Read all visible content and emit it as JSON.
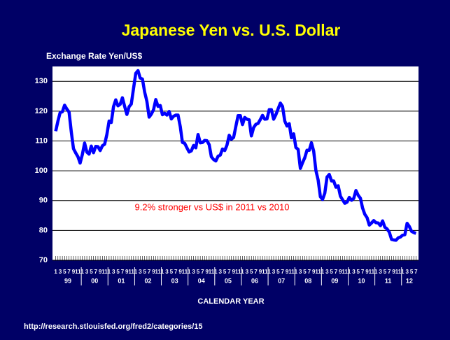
{
  "chart_data": {
    "type": "line",
    "title": "Japanese Yen vs. U.S. Dollar",
    "ylabel": "Exchange Rate Yen/US$",
    "xlabel": "CALENDAR YEAR",
    "annotation": "9.2% stronger vs US$ in 2011 vs 2010",
    "source": "http://research.stlouisfed.org/fred2/categories/15",
    "years": [
      "99",
      "00",
      "01",
      "02",
      "03",
      "04",
      "05",
      "06",
      "07",
      "08",
      "09",
      "10",
      "11",
      "12"
    ],
    "categories": [
      "1",
      null,
      "3",
      null,
      "5",
      null,
      "7",
      null,
      "9",
      null,
      "11",
      null,
      "1",
      null,
      "3",
      null,
      "5",
      null,
      "7",
      null,
      "9",
      null,
      "11",
      null,
      "1",
      null,
      "3",
      null,
      "5",
      null,
      "7",
      null,
      "9",
      null,
      "11",
      null,
      "1",
      null,
      "3",
      null,
      "5",
      null,
      "7",
      null,
      "9",
      null,
      "11",
      null,
      "1",
      null,
      "3",
      null,
      "5",
      null,
      "7",
      null,
      "9",
      null,
      "11",
      null,
      "1",
      null,
      "3",
      null,
      "5",
      null,
      "7",
      null,
      "9",
      null,
      "11",
      null,
      "1",
      null,
      "3",
      null,
      "5",
      null,
      "7",
      null,
      "9",
      null,
      "11",
      null,
      "1",
      null,
      "3",
      null,
      "5",
      null,
      "7",
      null,
      "9",
      null,
      "11",
      null,
      "1",
      null,
      "3",
      null,
      "5",
      null,
      "7",
      null,
      "9",
      null,
      "11",
      null,
      "1",
      null,
      "3",
      null,
      "5",
      null,
      "7",
      null,
      "9",
      null,
      "11",
      null,
      "1",
      null,
      "3",
      null,
      "5",
      null,
      "7",
      null,
      "9",
      null,
      "11",
      null,
      "1",
      null,
      "3",
      null,
      "5",
      null,
      "7",
      null,
      "9",
      null,
      "11",
      null,
      "1",
      null,
      "3",
      null,
      "5",
      null,
      "7",
      null,
      "9",
      null,
      "11",
      null,
      "1",
      null,
      "3",
      null,
      "5",
      null,
      "7"
    ],
    "series": [
      {
        "color": "#0000ff",
        "values": [
          113.3,
          116.7,
          119.5,
          119.8,
          122.0,
          120.7,
          119.7,
          113.2,
          107.4,
          106.0,
          104.7,
          102.6,
          105.5,
          109.3,
          106.3,
          105.6,
          108.3,
          106.1,
          108.2,
          108.1,
          106.8,
          108.4,
          108.9,
          112.2,
          116.7,
          116.2,
          121.5,
          123.8,
          121.8,
          122.3,
          124.5,
          121.6,
          118.9,
          121.5,
          122.4,
          127.6,
          132.7,
          133.6,
          131.1,
          130.8,
          126.4,
          123.3,
          118.0,
          119.0,
          120.5,
          123.9,
          121.6,
          121.9,
          118.8,
          119.3,
          118.7,
          119.9,
          117.4,
          118.3,
          118.7,
          118.7,
          114.8,
          109.5,
          109.2,
          107.7,
          106.3,
          106.7,
          108.5,
          107.7,
          112.2,
          109.4,
          109.5,
          110.2,
          110.1,
          108.8,
          104.7,
          103.8,
          103.3,
          104.9,
          105.3,
          107.3,
          106.8,
          108.6,
          111.9,
          110.6,
          111.2,
          114.9,
          118.5,
          118.5,
          115.5,
          117.9,
          117.3,
          117.1,
          111.7,
          114.5,
          115.6,
          115.9,
          117.2,
          118.6,
          117.3,
          117.4,
          120.5,
          120.5,
          117.3,
          118.8,
          120.8,
          122.7,
          121.6,
          116.7,
          115.0,
          115.8,
          111.1,
          112.4,
          107.8,
          107.2,
          100.8,
          102.7,
          104.4,
          106.9,
          106.9,
          109.4,
          106.6,
          100.1,
          96.9,
          91.3,
          90.4,
          92.5,
          97.9,
          98.8,
          96.6,
          96.6,
          94.5,
          95.0,
          91.5,
          90.3,
          89.1,
          89.5,
          91.1,
          90.1,
          90.7,
          93.4,
          91.8,
          90.8,
          87.5,
          85.4,
          84.3,
          81.8,
          82.5,
          83.3,
          82.6,
          82.5,
          81.6,
          83.2,
          81.1,
          80.5,
          79.4,
          77.0,
          76.8,
          76.7,
          77.5,
          77.8,
          78.4,
          78.6,
          82.4,
          81.3,
          79.7,
          79.3,
          79.0
        ]
      }
    ],
    "ylim": [
      70,
      135
    ],
    "yticks": [
      70,
      80,
      90,
      100,
      110,
      120,
      130
    ],
    "grid": true
  }
}
